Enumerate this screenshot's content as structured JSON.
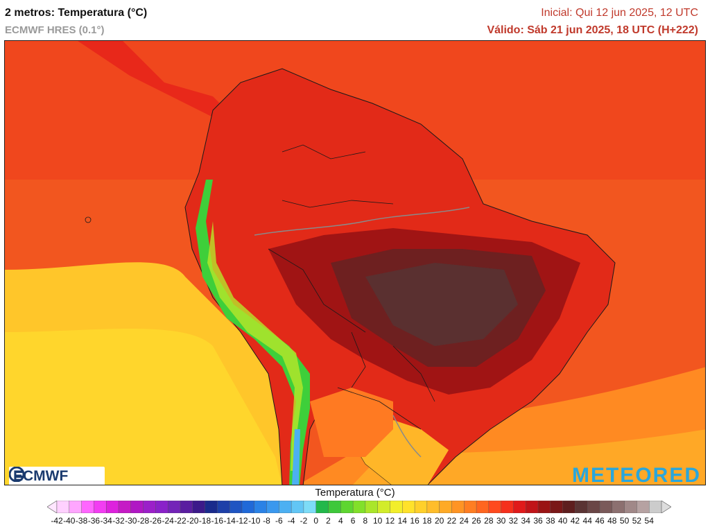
{
  "header": {
    "title": "2 metros: Temperatura (°C)",
    "model": "ECMWF HRES (0.1°)",
    "initial": "Inicial: Qui 12 jun 2025, 12 UTC",
    "valid": "Válido: Sáb 21 jun 2025, 18 UTC (H+222)"
  },
  "logos": {
    "left": "ECMWF",
    "right": "METEORED"
  },
  "legend": {
    "title": "Temperatura (°C)",
    "ticks": [
      "-42",
      "-40",
      "-38",
      "-36",
      "-34",
      "-32",
      "-30",
      "-28",
      "-26",
      "-24",
      "-22",
      "-20",
      "-18",
      "-16",
      "-14",
      "-12",
      "-10",
      "-8",
      "-6",
      "-4",
      "-2",
      "0",
      "2",
      "4",
      "6",
      "8",
      "10",
      "12",
      "14",
      "16",
      "18",
      "20",
      "22",
      "24",
      "26",
      "28",
      "30",
      "32",
      "34",
      "36",
      "38",
      "40",
      "42",
      "44",
      "46",
      "48",
      "50",
      "52",
      "54"
    ],
    "colors": [
      "#ffd1ff",
      "#ffa6ff",
      "#ff66ff",
      "#f23df2",
      "#dd22dd",
      "#c51bc5",
      "#b018c4",
      "#9b20c9",
      "#8a22c9",
      "#7324b8",
      "#5a1ea0",
      "#3c1a8a",
      "#1a2b8c",
      "#1e40a8",
      "#1f55c2",
      "#2069d8",
      "#2a82e6",
      "#3a98ee",
      "#4cb0f2",
      "#62c6f5",
      "#7ddcf7",
      "#22b84a",
      "#3ec83a",
      "#5ed630",
      "#82e02a",
      "#aae62a",
      "#d2ec2a",
      "#f2ee2a",
      "#ffe22a",
      "#ffd02a",
      "#ffbd2a",
      "#ffaa26",
      "#ff9424",
      "#ff7e22",
      "#ff6620",
      "#ff4a1e",
      "#f5301c",
      "#e01a1a",
      "#c01418",
      "#9a1414",
      "#7a1818",
      "#5e1e1e",
      "#5a3434",
      "#6a4646",
      "#7a5a5a",
      "#8c7070",
      "#a08888",
      "#b6a2a2",
      "#cccccc"
    ]
  }
}
